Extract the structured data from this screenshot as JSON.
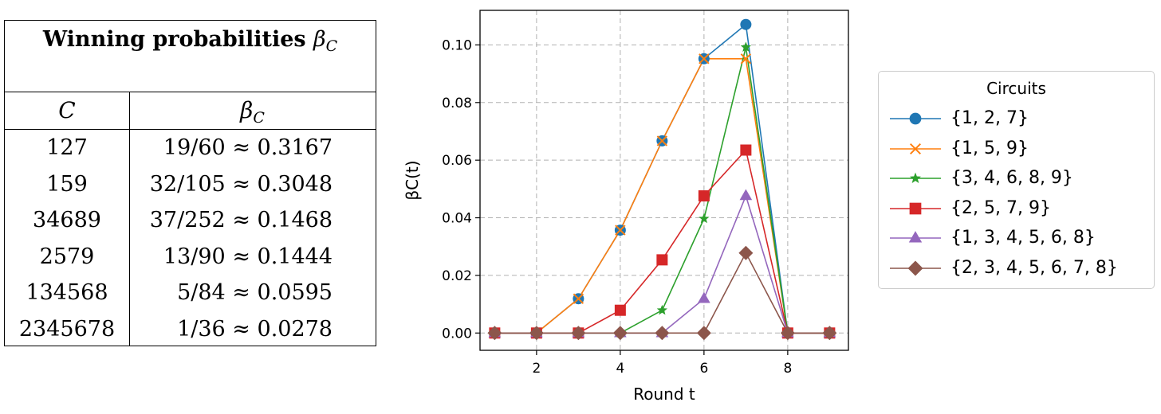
{
  "table": {
    "title_text": "Winning probabilities ",
    "title_symbol": "β",
    "title_subscript": "C",
    "col1_header": "C",
    "col2_header_symbol": "β",
    "col2_header_subscript": "C",
    "rows": [
      {
        "c": "127",
        "beta": "19/60 ≈ 0.3167"
      },
      {
        "c": "159",
        "beta": "32/105 ≈ 0.3048"
      },
      {
        "c": "34689",
        "beta": "37/252 ≈ 0.1468"
      },
      {
        "c": "2579",
        "beta": "13/90 ≈ 0.1444"
      },
      {
        "c": "134568",
        "beta": "5/84 ≈ 0.0595"
      },
      {
        "c": "2345678",
        "beta": "1/36 ≈ 0.0278"
      }
    ]
  },
  "chart_data": {
    "type": "line",
    "xlabel": "Round t",
    "ylabel": "βC(t)",
    "xlim": [
      0.65,
      9.45
    ],
    "ylim": [
      -0.006,
      0.112
    ],
    "xticks": [
      2,
      4,
      6,
      8
    ],
    "yticks": [
      0.0,
      0.02,
      0.04,
      0.06,
      0.08,
      0.1
    ],
    "ytick_labels": [
      "0.00",
      "0.02",
      "0.04",
      "0.06",
      "0.08",
      "0.10"
    ],
    "grid": true,
    "legend_title": "Circuits",
    "legend_placement": "outside-right",
    "x": [
      1,
      2,
      3,
      4,
      5,
      6,
      7,
      8,
      9
    ],
    "series": [
      {
        "name": "{1, 2, 7}",
        "color": "#1f77b4",
        "marker": "circle",
        "values": [
          0,
          0,
          0.0119,
          0.0357,
          0.0667,
          0.0952,
          0.1071,
          0,
          0
        ]
      },
      {
        "name": "{1, 5, 9}",
        "color": "#ff7f0e",
        "marker": "x",
        "values": [
          0,
          0,
          0.0119,
          0.0357,
          0.0667,
          0.0952,
          0.0952,
          0,
          0
        ]
      },
      {
        "name": "{3, 4, 6, 8, 9}",
        "color": "#2ca02c",
        "marker": "star",
        "values": [
          0,
          0,
          0,
          0,
          0.0079,
          0.0397,
          0.0992,
          0,
          0
        ]
      },
      {
        "name": "{2, 5, 7, 9}",
        "color": "#d62728",
        "marker": "square",
        "values": [
          0,
          0,
          0,
          0.0079,
          0.0254,
          0.0476,
          0.0635,
          0,
          0
        ]
      },
      {
        "name": "{1, 3, 4, 5, 6, 8}",
        "color": "#9467bd",
        "marker": "triangle",
        "values": [
          0,
          0,
          0,
          0,
          0,
          0.0119,
          0.0476,
          0,
          0
        ]
      },
      {
        "name": "{2, 3, 4, 5, 6, 7, 8}",
        "color": "#8c564b",
        "marker": "diamond",
        "values": [
          0,
          0,
          0,
          0,
          0,
          0,
          0.0278,
          0,
          0
        ]
      }
    ]
  }
}
